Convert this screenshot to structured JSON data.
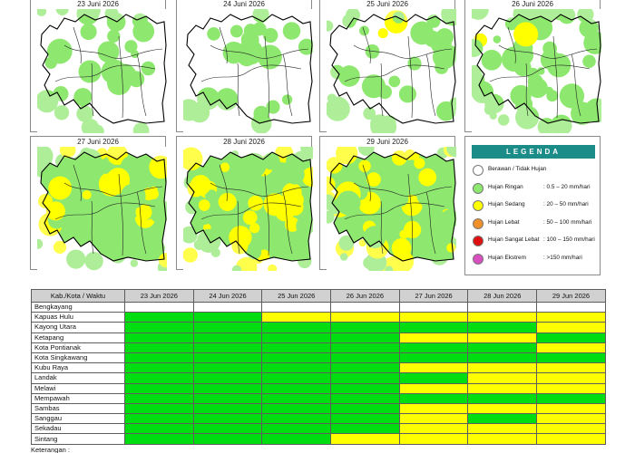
{
  "maps": [
    {
      "date": "23 Juni 2026",
      "coverage": "sparse-green"
    },
    {
      "date": "24 Juni 2026",
      "coverage": "sparse-green"
    },
    {
      "date": "25 Juni 2026",
      "coverage": "moderate-green"
    },
    {
      "date": "26 Juni 2026",
      "coverage": "green-some-yellow"
    },
    {
      "date": "27 Juni 2026",
      "coverage": "green-yellow"
    },
    {
      "date": "28 Juni 2026",
      "coverage": "green-yellow"
    },
    {
      "date": "29 Juni 2026",
      "coverage": "yellow-dominant"
    }
  ],
  "legend": {
    "title": "LEGENDA",
    "items": [
      {
        "label": "Berawan / Tidak Hujan",
        "range": "",
        "color": "#ffffff"
      },
      {
        "label": "Hujan Ringan",
        "range": ": 0.5 – 20 mm/hari",
        "color": "#8ee86f"
      },
      {
        "label": "Hujan Sedang",
        "range": ": 20 – 50 mm/hari",
        "color": "#ffff00"
      },
      {
        "label": "Hujan Lebat",
        "range": ": 50 – 100 mm/hari",
        "color": "#f0902a"
      },
      {
        "label": "Hujan Sangat Lebat",
        "range": ": 100 – 150 mm/hari",
        "color": "#e01010"
      },
      {
        "label": "Hujan Ekstrem",
        "range": ": >150 mm/hari",
        "color": "#d84fc0"
      }
    ]
  },
  "table": {
    "header_region": "Kab./Kota / Waktu",
    "columns": [
      "23 Jun 2026",
      "24 Jun 2026",
      "25 Jun 2026",
      "26 Jun 2026",
      "27 Jun 2026",
      "28 Jun 2026",
      "29 Jun 2026"
    ],
    "colors": {
      "G": "#00dd11",
      "Y": "#ffff00",
      "W": "#ffffff"
    },
    "rows": [
      {
        "region": "Bengkayang",
        "cells": [
          "W",
          "W",
          "W",
          "W",
          "W",
          "W",
          "W"
        ]
      },
      {
        "region": "Kapuas Hulu",
        "cells": [
          "G",
          "G",
          "Y",
          "Y",
          "Y",
          "Y",
          "Y"
        ]
      },
      {
        "region": "Kayong Utara",
        "cells": [
          "G",
          "G",
          "G",
          "G",
          "G",
          "G",
          "Y"
        ]
      },
      {
        "region": "Ketapang",
        "cells": [
          "G",
          "G",
          "G",
          "G",
          "Y",
          "Y",
          "G"
        ]
      },
      {
        "region": "Kota Pontianak",
        "cells": [
          "G",
          "G",
          "G",
          "G",
          "G",
          "G",
          "Y"
        ]
      },
      {
        "region": "Kota Singkawang",
        "cells": [
          "G",
          "G",
          "G",
          "G",
          "G",
          "G",
          "G"
        ]
      },
      {
        "region": "Kubu Raya",
        "cells": [
          "G",
          "G",
          "G",
          "G",
          "Y",
          "Y",
          "Y"
        ]
      },
      {
        "region": "Landak",
        "cells": [
          "G",
          "G",
          "G",
          "G",
          "G",
          "Y",
          "Y"
        ]
      },
      {
        "region": "Melawi",
        "cells": [
          "G",
          "G",
          "G",
          "G",
          "Y",
          "Y",
          "Y"
        ]
      },
      {
        "region": "Mempawah",
        "cells": [
          "G",
          "G",
          "G",
          "G",
          "G",
          "G",
          "G"
        ]
      },
      {
        "region": "Sambas",
        "cells": [
          "G",
          "G",
          "G",
          "G",
          "Y",
          "Y",
          "Y"
        ]
      },
      {
        "region": "Sanggau",
        "cells": [
          "G",
          "G",
          "G",
          "G",
          "Y",
          "G",
          "Y"
        ]
      },
      {
        "region": "Sekadau",
        "cells": [
          "G",
          "G",
          "G",
          "G",
          "Y",
          "Y",
          "Y"
        ]
      },
      {
        "region": "Sintang",
        "cells": [
          "G",
          "G",
          "G",
          "Y",
          "Y",
          "Y",
          "Y"
        ]
      }
    ]
  },
  "footer": {
    "keterangan": "Keterangan :"
  }
}
